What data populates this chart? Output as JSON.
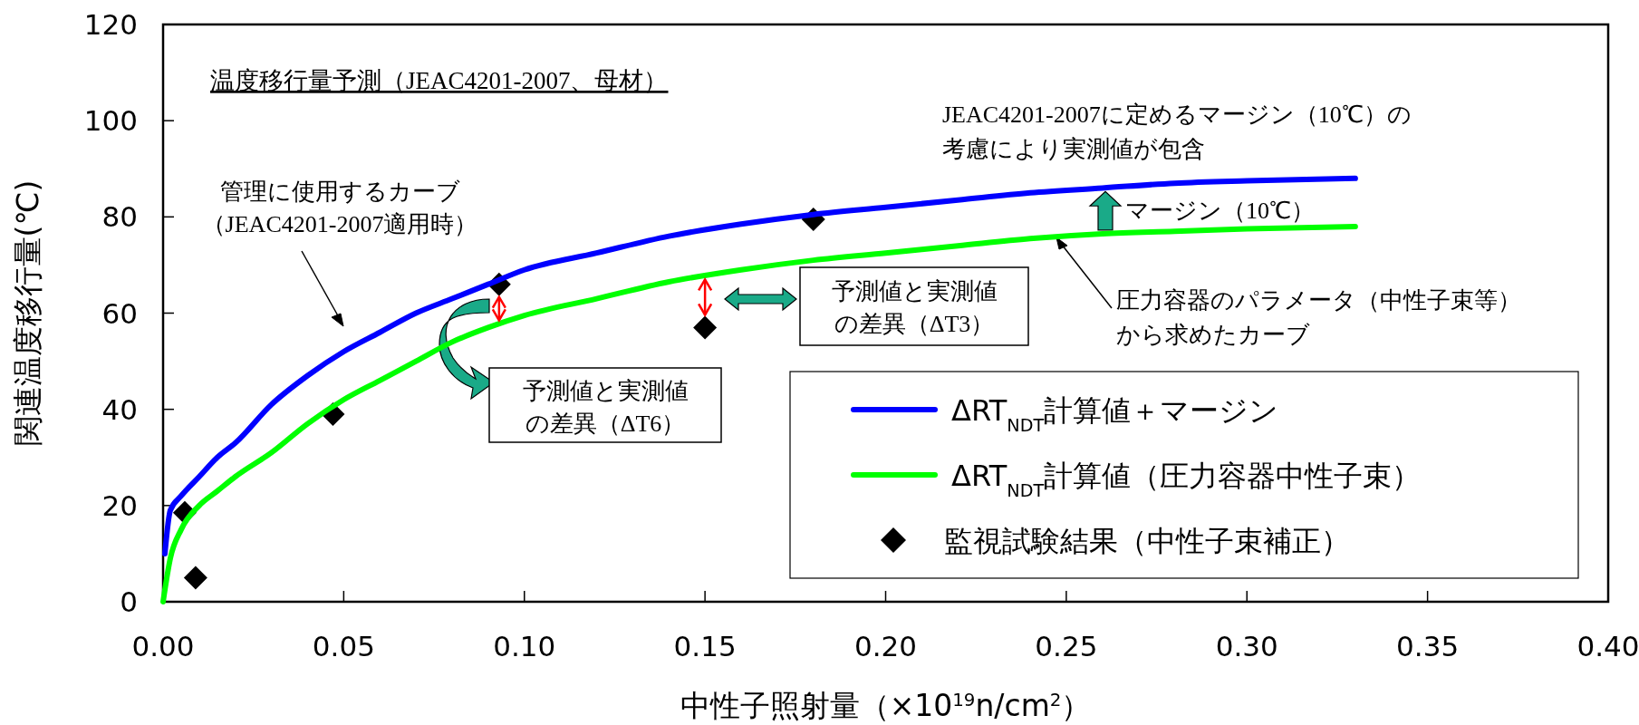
{
  "chart_data": {
    "type": "line",
    "title": "温度移行量予測（JEAC4201-2007、母材）",
    "xlabel": "中性子照射量（×10$^{19}$n/cm$^{2}$）",
    "ylabel": "関連温度移行量(℃)",
    "xlim": [
      0,
      0.4
    ],
    "xticks": [
      {
        "value": 0,
        "label": "0.00"
      },
      {
        "value": 0.05,
        "label": "0.05"
      },
      {
        "value": 0.1,
        "label": "0.10"
      },
      {
        "value": 0.15,
        "label": "0.15"
      },
      {
        "value": 0.2,
        "label": "0.20"
      },
      {
        "value": 0.25,
        "label": "0.25"
      },
      {
        "value": 0.3,
        "label": "0.30"
      },
      {
        "value": 0.35,
        "label": "0.35"
      },
      {
        "value": 0.4,
        "label": "0.40"
      }
    ],
    "ylim": [
      0,
      120
    ],
    "yticks": [
      0,
      20,
      40,
      60,
      80,
      100,
      120
    ],
    "grid": false,
    "legend": "bottom right",
    "series": [
      {
        "name": "ΔRT$_{NDT}$計算値＋マージン",
        "color": "#0000ff",
        "marker": "none",
        "line_style": "solid",
        "x": [
          0.0005,
          0.002,
          0.005,
          0.01,
          0.015,
          0.02,
          0.03,
          0.04,
          0.05,
          0.06,
          0.07,
          0.08,
          0.09,
          0.1,
          0.12,
          0.14,
          0.16,
          0.18,
          0.2,
          0.22,
          0.24,
          0.26,
          0.28,
          0.3,
          0.33
        ],
        "values": [
          10,
          19,
          22,
          26,
          30,
          33,
          41,
          47,
          52,
          56,
          60,
          63,
          66,
          69,
          72.5,
          76,
          78.5,
          80.5,
          82,
          83.5,
          85,
          86,
          87,
          87.5,
          88
        ]
      },
      {
        "name": "ΔRT$_{NDT}$計算値（圧力容器中性子束）",
        "color": "#00ff00",
        "marker": "none",
        "line_style": "solid",
        "x": [
          0,
          0.002,
          0.005,
          0.01,
          0.015,
          0.02,
          0.03,
          0.04,
          0.05,
          0.06,
          0.07,
          0.08,
          0.09,
          0.1,
          0.12,
          0.14,
          0.16,
          0.18,
          0.2,
          0.22,
          0.24,
          0.26,
          0.28,
          0.3,
          0.33
        ],
        "values": [
          0,
          9,
          15,
          20,
          23,
          26,
          31,
          37,
          42,
          46,
          50,
          54,
          57,
          59.5,
          63,
          66.5,
          69,
          71,
          72.5,
          74,
          75.5,
          76.5,
          77,
          77.5,
          78
        ]
      },
      {
        "name": "監視試験結果（中性子束補正）",
        "type": "scatter",
        "color": "#000000",
        "marker": "diamond",
        "x": [
          0.006,
          0.009,
          0.047,
          0.093,
          0.15,
          0.18
        ],
        "values": [
          18.5,
          5,
          39,
          66,
          57,
          79.5
        ]
      }
    ],
    "annotations": [
      "管理に使用するカーブ",
      "（JEAC4201-2007適用時）",
      "JEAC4201-2007に定めるマージン（10℃）の",
      "考慮により実測値が包含",
      "マージン（10℃）",
      "圧力容器のパラメータ（中性子束等）",
      "から求めたカーブ",
      "予測値と実測値",
      "の差異（ΔT3）",
      "予測値と実測値",
      "の差異（ΔT6）"
    ]
  }
}
